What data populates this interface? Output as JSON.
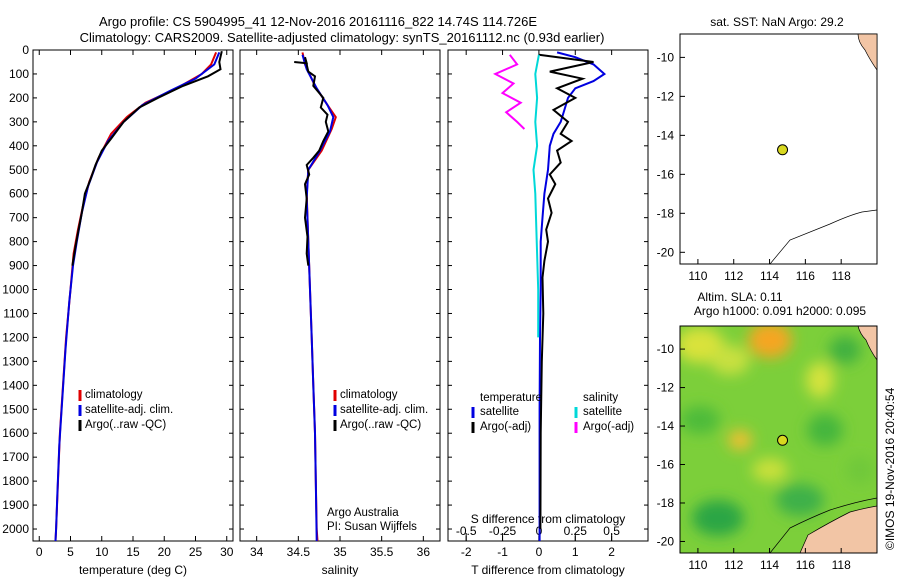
{
  "header": {
    "line1": "Argo profile: CS 5904995_41 12-Nov-2016 20161116_822 14.74S 114.726E",
    "line2": "Climatology: CARS2009. Satellite-adjusted climatology: synTS_20161112.nc (0.93d earlier)"
  },
  "colors": {
    "climatology": "#e00000",
    "satellite": "#0000e0",
    "argo": "#000000",
    "satellite_salinity": "#00d8d8",
    "argo_salinity_adj": "#ff00ff",
    "land": "#f2c5a5",
    "argo_marker": "#d8d820"
  },
  "chart_data": [
    {
      "type": "line",
      "title": "",
      "xlabel": "temperature (deg C)",
      "ylabel": "",
      "xlim": [
        -1,
        31
      ],
      "ylim": [
        2050,
        0
      ],
      "xticks": [
        "0",
        "5",
        "10",
        "15",
        "20",
        "25",
        "30"
      ],
      "yticks": [
        "0",
        "100",
        "200",
        "300",
        "400",
        "500",
        "600",
        "700",
        "800",
        "900",
        "1000",
        "1100",
        "1200",
        "1300",
        "1400",
        "1500",
        "1600",
        "1700",
        "1800",
        "1900",
        "2000"
      ],
      "legend": [
        "climatology",
        "satellite-adj. clim.",
        "Argo(..raw -QC)"
      ],
      "series": [
        {
          "name": "climatology",
          "color": "red",
          "points": [
            [
              28.3,
              10
            ],
            [
              27.5,
              60
            ],
            [
              26,
              100
            ],
            [
              22,
              160
            ],
            [
              17,
              220
            ],
            [
              14,
              280
            ],
            [
              11.5,
              350
            ],
            [
              9.5,
              450
            ],
            [
              8,
              550
            ],
            [
              7,
              650
            ],
            [
              6.2,
              750
            ],
            [
              5.5,
              850
            ],
            [
              5,
              1000
            ],
            [
              4.3,
              1200
            ],
            [
              3.8,
              1400
            ],
            [
              3.3,
              1600
            ],
            [
              3,
              1800
            ],
            [
              2.7,
              2000
            ],
            [
              2.6,
              2050
            ]
          ]
        },
        {
          "name": "satellite-adj. clim.",
          "color": "blue",
          "points": [
            [
              28.8,
              10
            ],
            [
              28,
              60
            ],
            [
              25,
              120
            ],
            [
              21,
              170
            ],
            [
              16.5,
              230
            ],
            [
              13.5,
              300
            ],
            [
              11,
              380
            ],
            [
              9.2,
              470
            ],
            [
              7.8,
              570
            ],
            [
              6.8,
              680
            ],
            [
              6,
              800
            ],
            [
              5.4,
              900
            ],
            [
              4.8,
              1050
            ],
            [
              4.2,
              1250
            ],
            [
              3.7,
              1450
            ],
            [
              3.2,
              1650
            ],
            [
              2.9,
              1850
            ],
            [
              2.7,
              2000
            ],
            [
              2.6,
              2050
            ]
          ]
        },
        {
          "name": "Argo(..raw -QC)",
          "color": "black",
          "points": [
            [
              29.2,
              5
            ],
            [
              28.8,
              50
            ],
            [
              29,
              80
            ],
            [
              27,
              110
            ],
            [
              23,
              150
            ],
            [
              19,
              200
            ],
            [
              16,
              240
            ],
            [
              13.5,
              300
            ],
            [
              11.5,
              370
            ],
            [
              10,
              420
            ],
            [
              9,
              480
            ],
            [
              8.2,
              540
            ],
            [
              7.3,
              600
            ],
            [
              6.8,
              680
            ],
            [
              6.3,
              750
            ],
            [
              5.8,
              820
            ],
            [
              5.3,
              900
            ]
          ]
        }
      ]
    },
    {
      "type": "line",
      "title": "",
      "xlabel": "salinity",
      "ylabel": "",
      "xlim": [
        33.8,
        36.2
      ],
      "ylim": [
        2050,
        0
      ],
      "xticks": [
        "34",
        "34.5",
        "35",
        "35.5",
        "36"
      ],
      "legend": [
        "climatology",
        "satellite-adj. clim.",
        "Argo(..raw -QC)"
      ],
      "annotations": [
        "Argo Australia",
        "PI: Susan Wijffels"
      ],
      "series": [
        {
          "name": "climatology",
          "color": "red",
          "points": [
            [
              34.55,
              10
            ],
            [
              34.58,
              60
            ],
            [
              34.7,
              150
            ],
            [
              34.85,
              230
            ],
            [
              34.95,
              280
            ],
            [
              34.9,
              330
            ],
            [
              34.78,
              420
            ],
            [
              34.62,
              500
            ],
            [
              34.6,
              600
            ],
            [
              34.62,
              800
            ],
            [
              34.64,
              1000
            ],
            [
              34.66,
              1200
            ],
            [
              34.68,
              1400
            ],
            [
              34.7,
              1600
            ],
            [
              34.71,
              1800
            ],
            [
              34.72,
              2000
            ],
            [
              34.73,
              2050
            ]
          ]
        },
        {
          "name": "satellite-adj. clim.",
          "color": "blue",
          "points": [
            [
              34.55,
              20
            ],
            [
              34.6,
              80
            ],
            [
              34.72,
              160
            ],
            [
              34.85,
              230
            ],
            [
              34.92,
              280
            ],
            [
              34.88,
              340
            ],
            [
              34.76,
              420
            ],
            [
              34.62,
              500
            ],
            [
              34.6,
              620
            ],
            [
              34.62,
              800
            ],
            [
              34.64,
              1000
            ],
            [
              34.66,
              1200
            ],
            [
              34.68,
              1400
            ],
            [
              34.7,
              1600
            ],
            [
              34.71,
              1800
            ],
            [
              34.72,
              2050
            ]
          ]
        },
        {
          "name": "Argo(..raw -QC)",
          "color": "black",
          "points": [
            [
              34.45,
              50
            ],
            [
              34.6,
              55
            ],
            [
              34.58,
              30
            ],
            [
              34.62,
              90
            ],
            [
              34.7,
              110
            ],
            [
              34.68,
              150
            ],
            [
              34.8,
              200
            ],
            [
              34.77,
              240
            ],
            [
              34.85,
              270
            ],
            [
              34.83,
              300
            ],
            [
              34.86,
              340
            ],
            [
              34.8,
              380
            ],
            [
              34.75,
              420
            ],
            [
              34.68,
              450
            ],
            [
              34.6,
              480
            ],
            [
              34.63,
              520
            ],
            [
              34.58,
              560
            ],
            [
              34.6,
              620
            ],
            [
              34.58,
              700
            ],
            [
              34.61,
              780
            ],
            [
              34.6,
              850
            ],
            [
              34.62,
              900
            ]
          ]
        }
      ]
    },
    {
      "type": "line",
      "title": "",
      "xlabel": "T difference from climatology",
      "x2label": "S difference from climatology",
      "ylabel": "",
      "xlim": [
        -2.5,
        3
      ],
      "ylim": [
        2050,
        0
      ],
      "xticks": [
        "-2",
        "-1",
        "0",
        "1",
        "2"
      ],
      "x2ticks": [
        "-0.5",
        "-0.25",
        "0",
        "0.25",
        "0.5"
      ],
      "legend_groups": [
        {
          "title": "temperature",
          "entries": [
            "satellite",
            "Argo(-adj)"
          ]
        },
        {
          "title": "salinity",
          "entries": [
            "satellite",
            "Argo(-adj)"
          ]
        }
      ],
      "series": [
        {
          "name": "temperature satellite",
          "color": "blue",
          "points": [
            [
              0.5,
              10
            ],
            [
              1,
              30
            ],
            [
              1.5,
              60
            ],
            [
              1.8,
              100
            ],
            [
              1.5,
              130
            ],
            [
              1,
              160
            ],
            [
              0.8,
              200
            ],
            [
              0.7,
              250
            ],
            [
              0.6,
              300
            ],
            [
              0.4,
              350
            ],
            [
              0.3,
              400
            ],
            [
              0.25,
              500
            ],
            [
              0.15,
              600
            ],
            [
              0.1,
              700
            ],
            [
              0.05,
              800
            ],
            [
              0.05,
              1000
            ],
            [
              0.03,
              1200
            ],
            [
              0.02,
              1500
            ],
            [
              0.02,
              1800
            ],
            [
              0.02,
              2050
            ]
          ]
        },
        {
          "name": "temperature Argo(-adj)",
          "color": "black",
          "points": [
            [
              0,
              20
            ],
            [
              1.5,
              50
            ],
            [
              0.3,
              90
            ],
            [
              1.2,
              120
            ],
            [
              0.5,
              160
            ],
            [
              1,
              200
            ],
            [
              0.4,
              250
            ],
            [
              0.8,
              300
            ],
            [
              0.6,
              350
            ],
            [
              0.9,
              380
            ],
            [
              0.5,
              420
            ],
            [
              0.6,
              470
            ],
            [
              0.3,
              520
            ],
            [
              0.45,
              560
            ],
            [
              0.25,
              620
            ],
            [
              0.35,
              680
            ],
            [
              0.2,
              750
            ],
            [
              0.25,
              800
            ],
            [
              0.15,
              880
            ],
            [
              0.1,
              950
            ],
            [
              0.12,
              1100
            ],
            [
              0.08,
              1300
            ],
            [
              0.05,
              1600
            ],
            [
              0.04,
              2000
            ]
          ]
        },
        {
          "name": "salinity satellite",
          "color": "cyan",
          "points": [
            [
              0,
              20
            ],
            [
              -0.1,
              100
            ],
            [
              -0.05,
              200
            ],
            [
              -0.1,
              300
            ],
            [
              -0.05,
              400
            ],
            [
              -0.15,
              500
            ],
            [
              -0.1,
              600
            ],
            [
              -0.08,
              700
            ],
            [
              -0.05,
              850
            ],
            [
              -0.02,
              1000
            ],
            [
              -0.02,
              1200
            ]
          ]
        },
        {
          "name": "salinity Argo(-adj)",
          "color": "magenta",
          "points": [
            [
              -0.8,
              20
            ],
            [
              -0.6,
              60
            ],
            [
              -1.2,
              100
            ],
            [
              -0.7,
              140
            ],
            [
              -1,
              180
            ],
            [
              -0.5,
              220
            ],
            [
              -0.9,
              260
            ],
            [
              -0.6,
              300
            ],
            [
              -0.4,
              330
            ]
          ]
        }
      ]
    },
    {
      "type": "scatter",
      "title": "sat. SST: NaN Argo: 29.2",
      "xlim": [
        109,
        120
      ],
      "ylim": [
        -20.6,
        -8.8
      ],
      "xticks": [
        "110",
        "112",
        "114",
        "116",
        "118"
      ],
      "yticks": [
        "-10",
        "-12",
        "-14",
        "-16",
        "-18",
        "-20"
      ],
      "points": [
        {
          "label": "Argo",
          "x": 114.726,
          "y": -14.74
        }
      ]
    },
    {
      "type": "heatmap",
      "title": "Altim. SLA: 0.11",
      "subtitle": "Argo h1000: 0.091 h2000: 0.095",
      "xlim": [
        109,
        120
      ],
      "ylim": [
        -20.6,
        -8.8
      ],
      "xticks": [
        "110",
        "112",
        "114",
        "116",
        "118"
      ],
      "yticks": [
        "-10",
        "-12",
        "-14",
        "-16",
        "-18",
        "-20"
      ],
      "points": [
        {
          "label": "Argo",
          "x": 114.726,
          "y": -14.74
        }
      ]
    }
  ],
  "credit": "©IMOS 19-Nov-2016 20:40:54"
}
